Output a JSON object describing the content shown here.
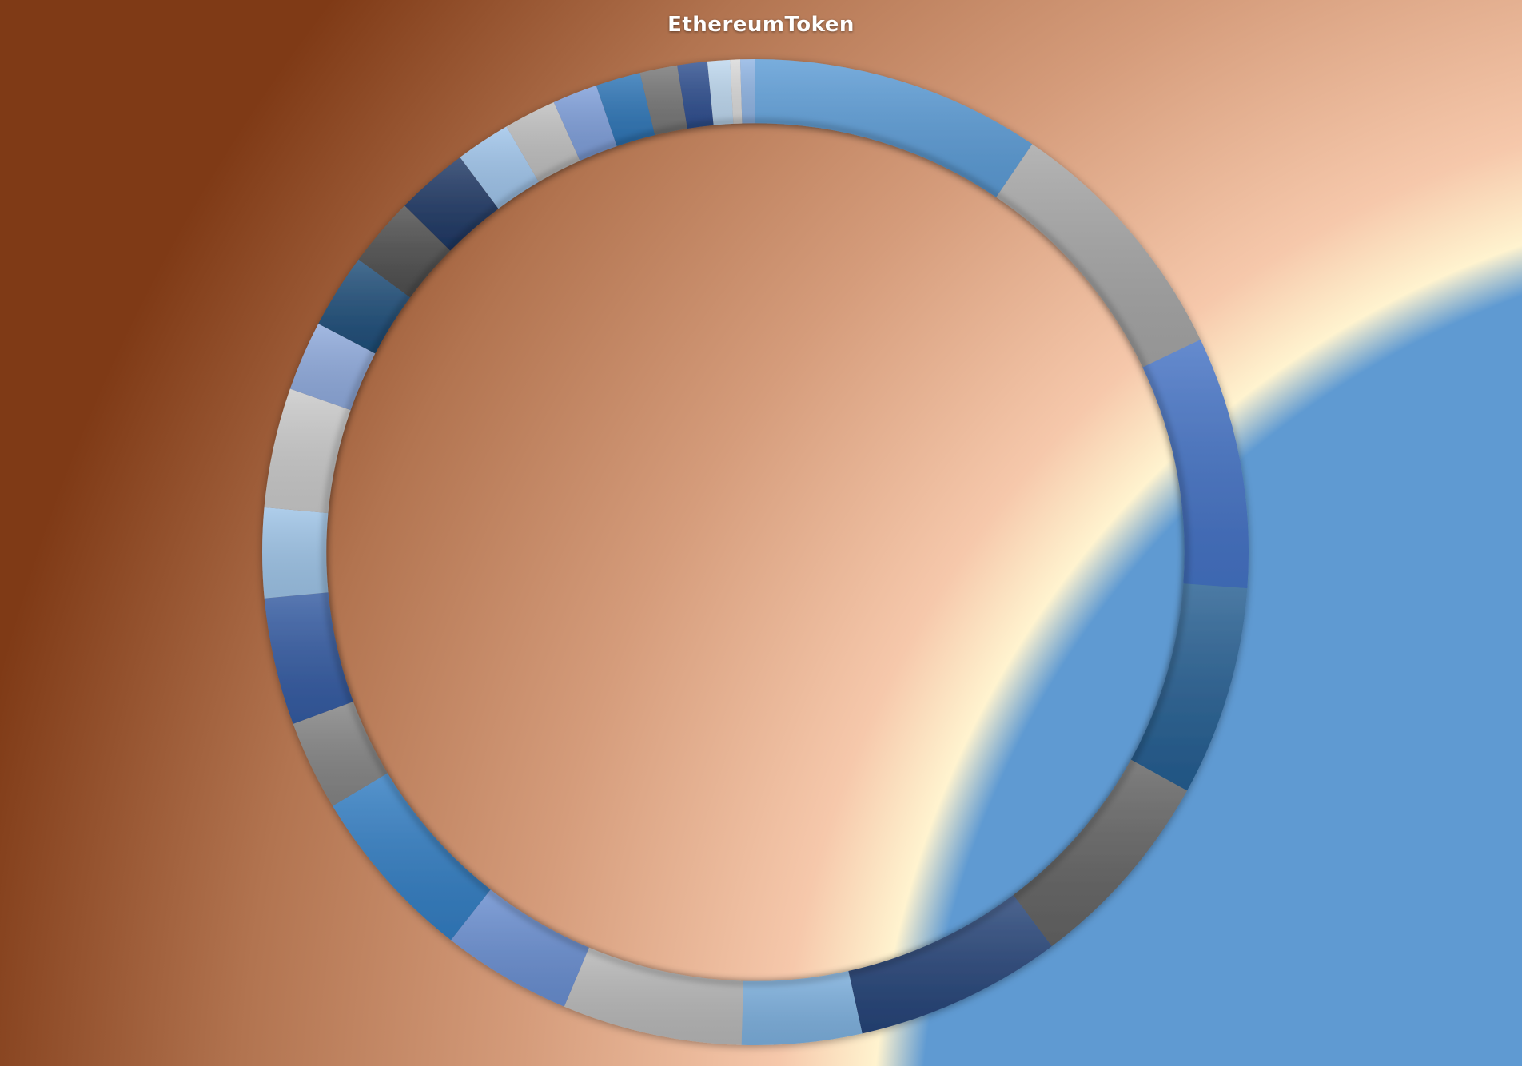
{
  "chart_data": {
    "type": "pie",
    "title": "EthereumToken",
    "hole": 0.87,
    "slices": [
      {
        "value": 11.6,
        "color": "#5b9bd5"
      },
      {
        "value": 10.3,
        "color": "#a5a5a5"
      },
      {
        "value": 10.1,
        "color": "#4472c4"
      },
      {
        "value": 8.4,
        "color": "#255e91"
      },
      {
        "value": 8.2,
        "color": "#636363"
      },
      {
        "value": 8.3,
        "color": "#264478"
      },
      {
        "value": 4.8,
        "color": "#7cafdd"
      },
      {
        "value": 7.2,
        "color": "#b7b7b7"
      },
      {
        "value": 5.2,
        "color": "#698ed0"
      },
      {
        "value": 7.1,
        "color": "#327dc2"
      },
      {
        "value": 3.6,
        "color": "#848484"
      },
      {
        "value": 5.1,
        "color": "#335aa1"
      },
      {
        "value": 3.6,
        "color": "#9dc3e6"
      },
      {
        "value": 4.8,
        "color": "#c9c9c9"
      },
      {
        "value": 2.8,
        "color": "#8faadc"
      },
      {
        "value": 3.0,
        "color": "#1f4e79"
      },
      {
        "value": 2.8,
        "color": "#4f4f4f"
      },
      {
        "value": 2.9,
        "color": "#1f3864"
      },
      {
        "value": 2.2,
        "color": "#9fc4ea"
      },
      {
        "value": 2.1,
        "color": "#bfbfbf"
      },
      {
        "value": 1.8,
        "color": "#7e9ed9"
      },
      {
        "value": 1.8,
        "color": "#2e75b6"
      },
      {
        "value": 1.5,
        "color": "#767676"
      },
      {
        "value": 1.2,
        "color": "#2f4f8f"
      },
      {
        "value": 0.9,
        "color": "#bdd7ee"
      },
      {
        "value": 0.4,
        "color": "#d9d9d9"
      },
      {
        "value": 0.6,
        "color": "#8fb4e3"
      }
    ]
  }
}
